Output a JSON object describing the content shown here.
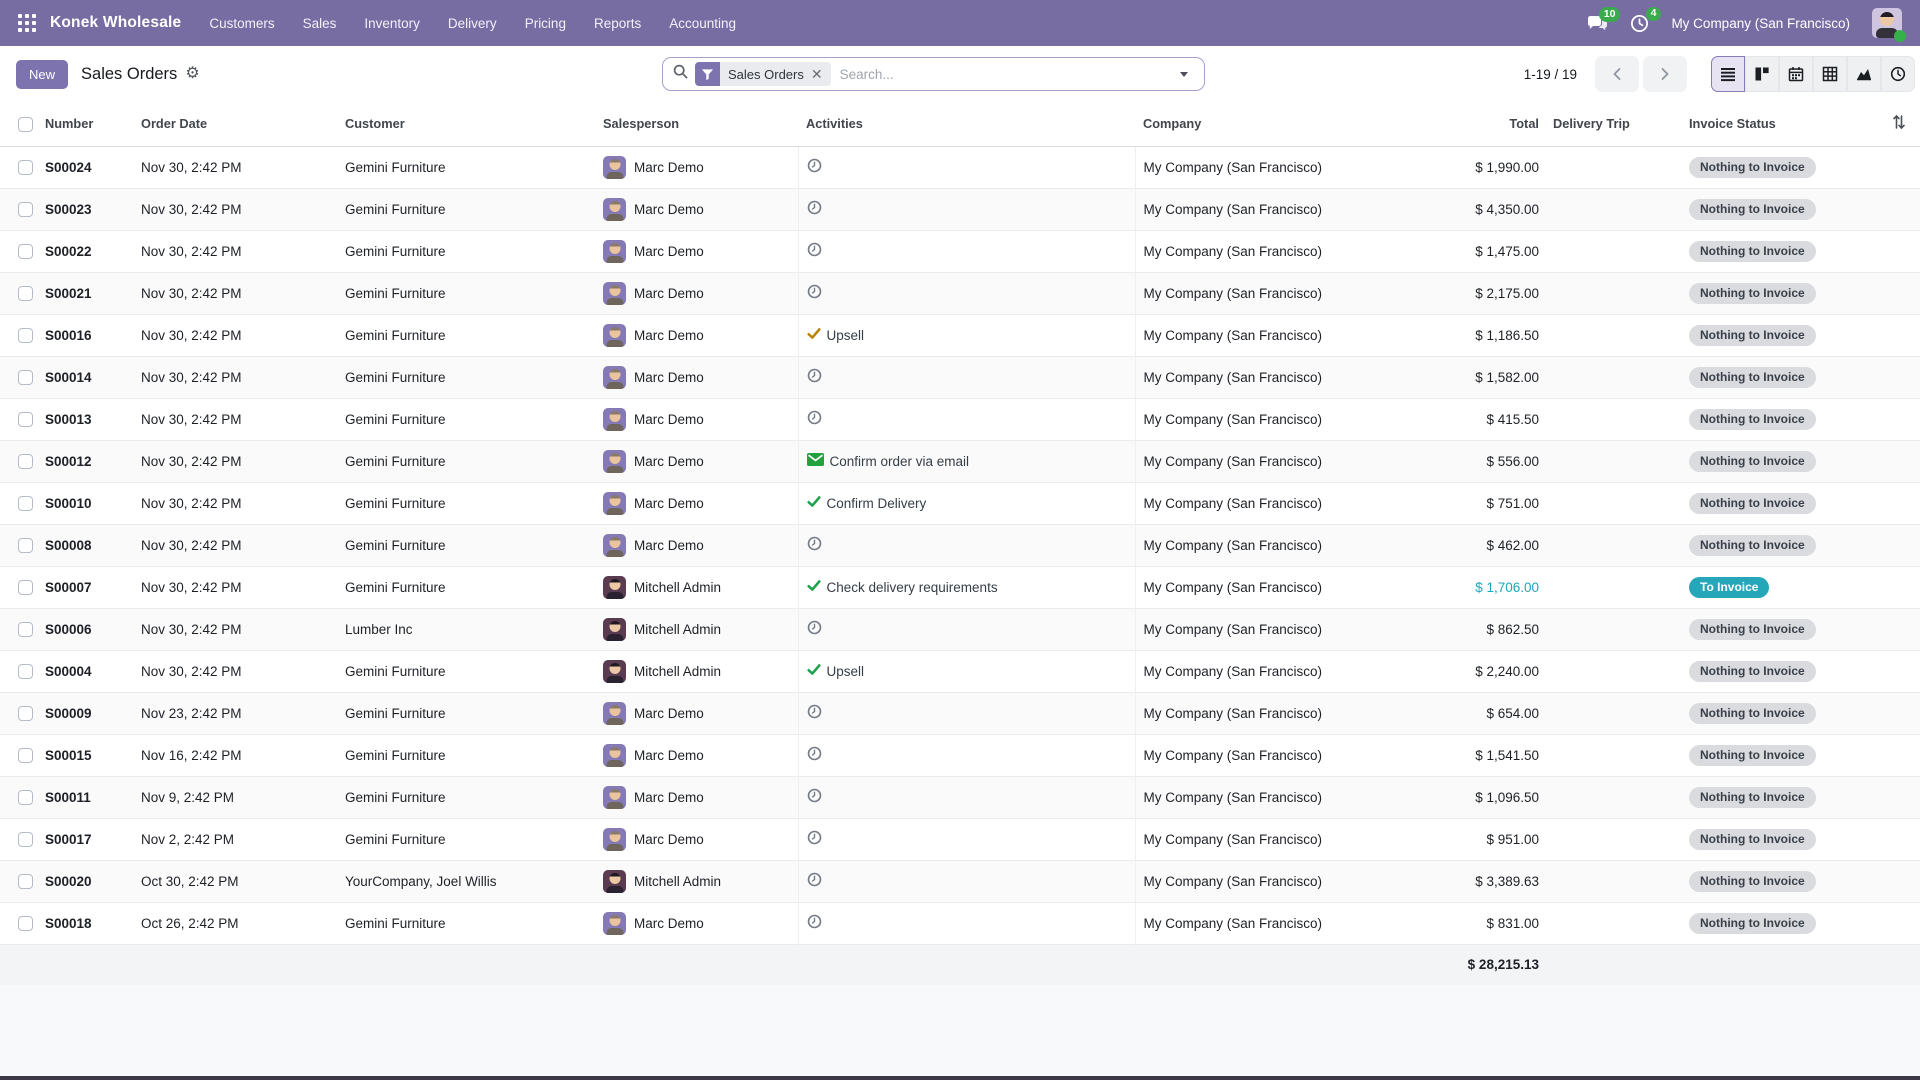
{
  "navbar": {
    "brand": "Konek Wholesale",
    "menus": [
      "Customers",
      "Sales",
      "Inventory",
      "Delivery",
      "Pricing",
      "Reports",
      "Accounting"
    ],
    "messages_badge": "10",
    "activities_badge": "4",
    "company_name": "My Company (San Francisco)"
  },
  "control_panel": {
    "new_button": "New",
    "title": "Sales Orders",
    "search": {
      "facet": "Sales Orders",
      "placeholder": "Search..."
    },
    "pager": "1-19 / 19"
  },
  "table": {
    "columns": {
      "number": "Number",
      "order_date": "Order Date",
      "customer": "Customer",
      "salesperson": "Salesperson",
      "activities": "Activities",
      "company": "Company",
      "total": "Total",
      "delivery_trip": "Delivery Trip",
      "invoice_status": "Invoice Status"
    },
    "rows": [
      {
        "number": "S00024",
        "date": "Nov 30, 2:42 PM",
        "customer": "Gemini Furniture",
        "salesperson": "Marc Demo",
        "avatar": "marc",
        "activity": {
          "type": "clock",
          "label": ""
        },
        "company": "My Company (San Francisco)",
        "total": "$ 1,990.00",
        "total_variant": "default",
        "status": "Nothing to Invoice",
        "status_variant": "muted"
      },
      {
        "number": "S00023",
        "date": "Nov 30, 2:42 PM",
        "customer": "Gemini Furniture",
        "salesperson": "Marc Demo",
        "avatar": "marc",
        "activity": {
          "type": "clock",
          "label": ""
        },
        "company": "My Company (San Francisco)",
        "total": "$ 4,350.00",
        "total_variant": "default",
        "status": "Nothing to Invoice",
        "status_variant": "muted"
      },
      {
        "number": "S00022",
        "date": "Nov 30, 2:42 PM",
        "customer": "Gemini Furniture",
        "salesperson": "Marc Demo",
        "avatar": "marc",
        "activity": {
          "type": "clock",
          "label": ""
        },
        "company": "My Company (San Francisco)",
        "total": "$ 1,475.00",
        "total_variant": "default",
        "status": "Nothing to Invoice",
        "status_variant": "muted"
      },
      {
        "number": "S00021",
        "date": "Nov 30, 2:42 PM",
        "customer": "Gemini Furniture",
        "salesperson": "Marc Demo",
        "avatar": "marc",
        "activity": {
          "type": "clock",
          "label": ""
        },
        "company": "My Company (San Francisco)",
        "total": "$ 2,175.00",
        "total_variant": "default",
        "status": "Nothing to Invoice",
        "status_variant": "muted"
      },
      {
        "number": "S00016",
        "date": "Nov 30, 2:42 PM",
        "customer": "Gemini Furniture",
        "salesperson": "Marc Demo",
        "avatar": "marc",
        "activity": {
          "type": "check_gold",
          "label": "Upsell"
        },
        "company": "My Company (San Francisco)",
        "total": "$ 1,186.50",
        "total_variant": "default",
        "status": "Nothing to Invoice",
        "status_variant": "muted"
      },
      {
        "number": "S00014",
        "date": "Nov 30, 2:42 PM",
        "customer": "Gemini Furniture",
        "salesperson": "Marc Demo",
        "avatar": "marc",
        "activity": {
          "type": "clock",
          "label": ""
        },
        "company": "My Company (San Francisco)",
        "total": "$ 1,582.00",
        "total_variant": "default",
        "status": "Nothing to Invoice",
        "status_variant": "muted"
      },
      {
        "number": "S00013",
        "date": "Nov 30, 2:42 PM",
        "customer": "Gemini Furniture",
        "salesperson": "Marc Demo",
        "avatar": "marc",
        "activity": {
          "type": "clock",
          "label": ""
        },
        "company": "My Company (San Francisco)",
        "total": "$ 415.50",
        "total_variant": "default",
        "status": "Nothing to Invoice",
        "status_variant": "muted"
      },
      {
        "number": "S00012",
        "date": "Nov 30, 2:42 PM",
        "customer": "Gemini Furniture",
        "salesperson": "Marc Demo",
        "avatar": "marc",
        "activity": {
          "type": "email",
          "label": "Confirm order via email"
        },
        "company": "My Company (San Francisco)",
        "total": "$ 556.00",
        "total_variant": "default",
        "status": "Nothing to Invoice",
        "status_variant": "muted"
      },
      {
        "number": "S00010",
        "date": "Nov 30, 2:42 PM",
        "customer": "Gemini Furniture",
        "salesperson": "Marc Demo",
        "avatar": "marc",
        "activity": {
          "type": "check",
          "label": "Confirm Delivery"
        },
        "company": "My Company (San Francisco)",
        "total": "$ 751.00",
        "total_variant": "default",
        "status": "Nothing to Invoice",
        "status_variant": "muted"
      },
      {
        "number": "S00008",
        "date": "Nov 30, 2:42 PM",
        "customer": "Gemini Furniture",
        "salesperson": "Marc Demo",
        "avatar": "marc",
        "activity": {
          "type": "clock",
          "label": ""
        },
        "company": "My Company (San Francisco)",
        "total": "$ 462.00",
        "total_variant": "default",
        "status": "Nothing to Invoice",
        "status_variant": "muted"
      },
      {
        "number": "S00007",
        "date": "Nov 30, 2:42 PM",
        "customer": "Gemini Furniture",
        "salesperson": "Mitchell Admin",
        "avatar": "mitchell",
        "activity": {
          "type": "check",
          "label": "Check delivery requirements"
        },
        "company": "My Company (San Francisco)",
        "total": "$ 1,706.00",
        "total_variant": "info",
        "status": "To Invoice",
        "status_variant": "info"
      },
      {
        "number": "S00006",
        "date": "Nov 30, 2:42 PM",
        "customer": "Lumber Inc",
        "salesperson": "Mitchell Admin",
        "avatar": "mitchell",
        "activity": {
          "type": "clock",
          "label": ""
        },
        "company": "My Company (San Francisco)",
        "total": "$ 862.50",
        "total_variant": "default",
        "status": "Nothing to Invoice",
        "status_variant": "muted"
      },
      {
        "number": "S00004",
        "date": "Nov 30, 2:42 PM",
        "customer": "Gemini Furniture",
        "salesperson": "Mitchell Admin",
        "avatar": "mitchell",
        "activity": {
          "type": "check",
          "label": "Upsell"
        },
        "company": "My Company (San Francisco)",
        "total": "$ 2,240.00",
        "total_variant": "default",
        "status": "Nothing to Invoice",
        "status_variant": "muted"
      },
      {
        "number": "S00009",
        "date": "Nov 23, 2:42 PM",
        "customer": "Gemini Furniture",
        "salesperson": "Marc Demo",
        "avatar": "marc",
        "activity": {
          "type": "clock",
          "label": ""
        },
        "company": "My Company (San Francisco)",
        "total": "$ 654.00",
        "total_variant": "default",
        "status": "Nothing to Invoice",
        "status_variant": "muted"
      },
      {
        "number": "S00015",
        "date": "Nov 16, 2:42 PM",
        "customer": "Gemini Furniture",
        "salesperson": "Marc Demo",
        "avatar": "marc",
        "activity": {
          "type": "clock",
          "label": ""
        },
        "company": "My Company (San Francisco)",
        "total": "$ 1,541.50",
        "total_variant": "default",
        "status": "Nothing to Invoice",
        "status_variant": "muted"
      },
      {
        "number": "S00011",
        "date": "Nov 9, 2:42 PM",
        "customer": "Gemini Furniture",
        "salesperson": "Marc Demo",
        "avatar": "marc",
        "activity": {
          "type": "clock",
          "label": ""
        },
        "company": "My Company (San Francisco)",
        "total": "$ 1,096.50",
        "total_variant": "default",
        "status": "Nothing to Invoice",
        "status_variant": "muted"
      },
      {
        "number": "S00017",
        "date": "Nov 2, 2:42 PM",
        "customer": "Gemini Furniture",
        "salesperson": "Marc Demo",
        "avatar": "marc",
        "activity": {
          "type": "clock",
          "label": ""
        },
        "company": "My Company (San Francisco)",
        "total": "$ 951.00",
        "total_variant": "default",
        "status": "Nothing to Invoice",
        "status_variant": "muted"
      },
      {
        "number": "S00020",
        "date": "Oct 30, 2:42 PM",
        "customer": "YourCompany, Joel Willis",
        "salesperson": "Mitchell Admin",
        "avatar": "mitchell",
        "activity": {
          "type": "clock",
          "label": ""
        },
        "company": "My Company (San Francisco)",
        "total": "$ 3,389.63",
        "total_variant": "default",
        "status": "Nothing to Invoice",
        "status_variant": "muted"
      },
      {
        "number": "S00018",
        "date": "Oct 26, 2:42 PM",
        "customer": "Gemini Furniture",
        "salesperson": "Marc Demo",
        "avatar": "marc",
        "activity": {
          "type": "clock",
          "label": ""
        },
        "company": "My Company (San Francisco)",
        "total": "$ 831.00",
        "total_variant": "default",
        "status": "Nothing to Invoice",
        "status_variant": "muted"
      }
    ],
    "footer_total": "$ 28,215.13"
  },
  "colors": {
    "accent": "#776da3",
    "info": "#1da7bc",
    "badge_info_bg": "#26a6b9",
    "badge_muted_bg": "#d9dbde",
    "success": "#1fa14d",
    "warning": "#b8860b",
    "notification_badge": "#3aaa4d"
  }
}
